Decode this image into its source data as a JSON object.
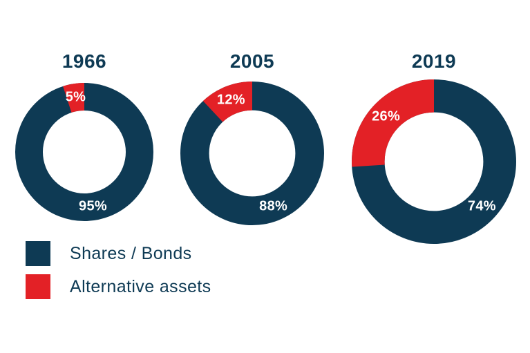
{
  "colors": {
    "navy": "#0E3A54",
    "red": "#E32126",
    "slice_label": "#FFFFFF",
    "background": "#FFFFFF"
  },
  "chart_data": [
    {
      "type": "pie",
      "variant": "donut",
      "title": "1966",
      "categories": [
        "Shares / Bonds",
        "Alternative assets"
      ],
      "values": [
        95,
        5
      ],
      "value_labels": [
        "95%",
        "5%"
      ],
      "colors": [
        "#0E3A54",
        "#E32126"
      ],
      "start_angle_deg": 0,
      "direction": "clockwise",
      "inner_radius_ratio": 0.6,
      "legend_position": "bottom-left"
    },
    {
      "type": "pie",
      "variant": "donut",
      "title": "2005",
      "categories": [
        "Shares / Bonds",
        "Alternative assets"
      ],
      "values": [
        88,
        12
      ],
      "value_labels": [
        "88%",
        "12%"
      ],
      "colors": [
        "#0E3A54",
        "#E32126"
      ],
      "start_angle_deg": 0,
      "direction": "clockwise",
      "inner_radius_ratio": 0.6,
      "legend_position": "bottom-left"
    },
    {
      "type": "pie",
      "variant": "donut",
      "title": "2019",
      "categories": [
        "Shares / Bonds",
        "Alternative assets"
      ],
      "values": [
        74,
        26
      ],
      "value_labels": [
        "74%",
        "26%"
      ],
      "colors": [
        "#0E3A54",
        "#E32126"
      ],
      "start_angle_deg": 0,
      "direction": "clockwise",
      "inner_radius_ratio": 0.6,
      "legend_position": "bottom-left"
    }
  ],
  "legend": {
    "items": [
      {
        "label": "Shares / Bonds",
        "color": "#0E3A54"
      },
      {
        "label": "Alternative assets",
        "color": "#E32126"
      }
    ]
  }
}
